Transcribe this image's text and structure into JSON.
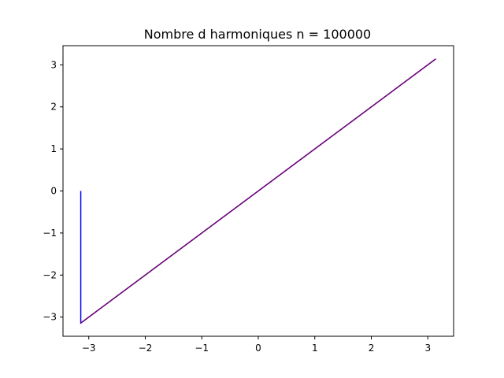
{
  "chart_data": {
    "type": "line",
    "title": "Nombre d harmoniques n = 100000",
    "xlabel": "",
    "ylabel": "",
    "xlim": [
      -3.456,
      3.456
    ],
    "ylim": [
      -3.456,
      3.456
    ],
    "x_ticks": [
      -3,
      -2,
      -1,
      0,
      1,
      2,
      3
    ],
    "x_tick_labels": [
      "−3",
      "−2",
      "−1",
      "0",
      "1",
      "2",
      "3"
    ],
    "y_ticks": [
      -3,
      -2,
      -1,
      0,
      1,
      2,
      3
    ],
    "y_tick_labels": [
      "−3",
      "−2",
      "−1",
      "0",
      "1",
      "2",
      "3"
    ],
    "grid": false,
    "series": [
      {
        "color": "#0000ff",
        "x": [
          -3.14159,
          -3.14159,
          3.14159
        ],
        "y": [
          0,
          -3.14159,
          3.14159
        ]
      },
      {
        "color": "#cc0000",
        "x": [
          -3.14159,
          3.14159
        ],
        "y": [
          -3.14159,
          3.14159
        ]
      }
    ]
  }
}
